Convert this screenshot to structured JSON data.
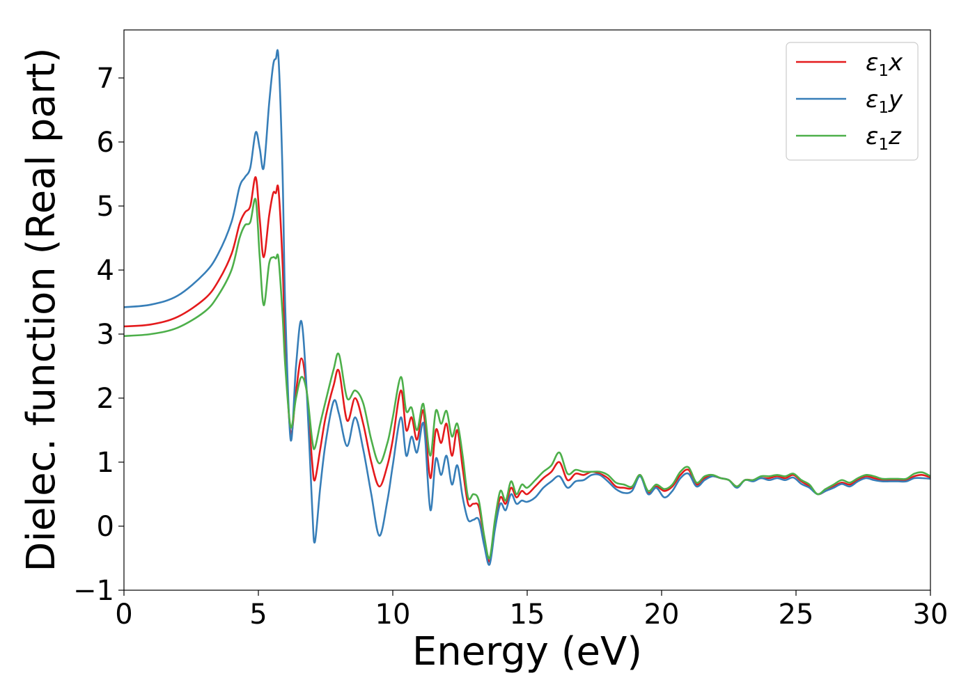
{
  "chart_data": {
    "type": "line",
    "xlabel": "Energy (eV)",
    "ylabel": "Dielec. function (Real part)",
    "xlim": [
      0,
      30
    ],
    "ylim": [
      -1,
      7.75
    ],
    "xticks": [
      0,
      5,
      10,
      15,
      20,
      25,
      30
    ],
    "xtick_labels": [
      "0",
      "5",
      "10",
      "15",
      "20",
      "25",
      "30"
    ],
    "yticks": [
      -1,
      0,
      1,
      2,
      3,
      4,
      5,
      6,
      7
    ],
    "ytick_labels": [
      "−1",
      "0",
      "1",
      "2",
      "3",
      "4",
      "5",
      "6",
      "7"
    ],
    "grid": false,
    "legend_position": "top-right",
    "series": [
      {
        "name": "ε1x",
        "legend": {
          "symbol": "ε",
          "sub": "1",
          "axis": "x"
        },
        "color": "#e41a1c",
        "x": [
          0,
          1,
          2,
          3,
          3.5,
          4,
          4.3,
          4.5,
          4.7,
          4.9,
          5.05,
          5.2,
          5.4,
          5.55,
          5.65,
          5.75,
          5.9,
          6.0,
          6.2,
          6.4,
          6.6,
          6.8,
          7.0,
          7.1,
          7.3,
          7.5,
          7.8,
          8.0,
          8.3,
          8.6,
          8.9,
          9.2,
          9.5,
          9.8,
          10.0,
          10.3,
          10.5,
          10.7,
          10.9,
          11.1,
          11.2,
          11.4,
          11.6,
          11.8,
          12.0,
          12.2,
          12.4,
          12.6,
          12.8,
          13.0,
          13.2,
          13.4,
          13.6,
          13.8,
          14.0,
          14.2,
          14.4,
          14.6,
          14.8,
          15.0,
          15.3,
          15.6,
          15.9,
          16.2,
          16.5,
          16.8,
          17.1,
          17.4,
          17.7,
          18.0,
          18.3,
          18.6,
          18.9,
          19.2,
          19.5,
          19.8,
          20.1,
          20.4,
          20.7,
          21.0,
          21.3,
          21.6,
          21.9,
          22.2,
          22.5,
          22.8,
          23.1,
          23.4,
          23.7,
          24.0,
          24.3,
          24.6,
          24.9,
          25.2,
          25.5,
          25.8,
          26.1,
          26.4,
          26.7,
          27.0,
          27.3,
          27.6,
          27.9,
          28.2,
          28.5,
          28.8,
          29.1,
          29.4,
          29.7,
          30
        ],
        "y": [
          3.12,
          3.15,
          3.27,
          3.55,
          3.82,
          4.25,
          4.72,
          4.9,
          5.0,
          5.45,
          4.8,
          4.2,
          4.85,
          5.2,
          5.2,
          5.25,
          4.1,
          2.8,
          1.45,
          2.1,
          2.62,
          2.1,
          1.0,
          0.72,
          1.2,
          1.7,
          2.2,
          2.42,
          1.65,
          2.0,
          1.6,
          1.0,
          0.62,
          0.95,
          1.35,
          2.12,
          1.5,
          1.7,
          1.35,
          1.8,
          1.6,
          0.75,
          1.5,
          1.3,
          1.6,
          1.1,
          1.5,
          0.9,
          0.35,
          0.35,
          0.3,
          -0.2,
          -0.55,
          0.05,
          0.45,
          0.35,
          0.6,
          0.45,
          0.55,
          0.5,
          0.62,
          0.75,
          0.85,
          1.0,
          0.72,
          0.82,
          0.8,
          0.85,
          0.82,
          0.75,
          0.62,
          0.6,
          0.6,
          0.8,
          0.52,
          0.62,
          0.55,
          0.62,
          0.8,
          0.88,
          0.65,
          0.75,
          0.78,
          0.75,
          0.72,
          0.62,
          0.72,
          0.72,
          0.75,
          0.75,
          0.78,
          0.75,
          0.8,
          0.7,
          0.62,
          0.5,
          0.55,
          0.62,
          0.68,
          0.65,
          0.72,
          0.78,
          0.75,
          0.72,
          0.72,
          0.72,
          0.72,
          0.78,
          0.8,
          0.76
        ]
      },
      {
        "name": "ε1y",
        "legend": {
          "symbol": "ε",
          "sub": "1",
          "axis": "y"
        },
        "color": "#377eb8",
        "x": [
          0,
          1,
          2,
          3,
          3.5,
          4,
          4.3,
          4.5,
          4.7,
          4.9,
          5.05,
          5.2,
          5.4,
          5.55,
          5.65,
          5.75,
          5.9,
          6.0,
          6.2,
          6.4,
          6.6,
          6.8,
          7.0,
          7.1,
          7.3,
          7.5,
          7.8,
          8.0,
          8.3,
          8.6,
          8.9,
          9.2,
          9.5,
          9.8,
          10.0,
          10.3,
          10.5,
          10.7,
          10.9,
          11.1,
          11.2,
          11.4,
          11.6,
          11.8,
          12.0,
          12.2,
          12.4,
          12.6,
          12.8,
          13.0,
          13.2,
          13.4,
          13.6,
          13.8,
          14.0,
          14.2,
          14.4,
          14.6,
          14.8,
          15.0,
          15.3,
          15.6,
          15.9,
          16.2,
          16.5,
          16.8,
          17.1,
          17.4,
          17.7,
          18.0,
          18.3,
          18.6,
          18.9,
          19.2,
          19.5,
          19.8,
          20.1,
          20.4,
          20.7,
          21.0,
          21.3,
          21.6,
          21.9,
          22.2,
          22.5,
          22.8,
          23.1,
          23.4,
          23.7,
          24.0,
          24.3,
          24.6,
          24.9,
          25.2,
          25.5,
          25.8,
          26.1,
          26.4,
          26.7,
          27.0,
          27.3,
          27.6,
          27.9,
          28.2,
          28.5,
          28.8,
          29.1,
          29.4,
          29.7,
          30
        ],
        "y": [
          3.42,
          3.46,
          3.6,
          3.95,
          4.25,
          4.75,
          5.3,
          5.45,
          5.6,
          6.15,
          5.9,
          5.6,
          6.6,
          7.2,
          7.3,
          7.3,
          5.5,
          3.4,
          1.35,
          2.5,
          3.2,
          2.1,
          0.3,
          -0.25,
          0.6,
          1.3,
          1.95,
          1.75,
          1.25,
          1.7,
          1.2,
          0.5,
          -0.15,
          0.4,
          0.95,
          1.7,
          1.1,
          1.4,
          1.15,
          1.6,
          1.4,
          0.25,
          1.05,
          0.8,
          1.1,
          0.65,
          0.95,
          0.45,
          0.1,
          0.1,
          0.1,
          -0.3,
          -0.6,
          -0.05,
          0.35,
          0.25,
          0.5,
          0.35,
          0.4,
          0.38,
          0.45,
          0.6,
          0.7,
          0.78,
          0.6,
          0.7,
          0.72,
          0.8,
          0.8,
          0.7,
          0.58,
          0.52,
          0.55,
          0.78,
          0.5,
          0.6,
          0.45,
          0.55,
          0.75,
          0.82,
          0.62,
          0.72,
          0.78,
          0.75,
          0.72,
          0.6,
          0.72,
          0.7,
          0.75,
          0.72,
          0.75,
          0.72,
          0.76,
          0.66,
          0.6,
          0.5,
          0.55,
          0.6,
          0.66,
          0.62,
          0.7,
          0.75,
          0.72,
          0.7,
          0.7,
          0.7,
          0.7,
          0.75,
          0.75,
          0.74
        ]
      },
      {
        "name": "ε1z",
        "legend": {
          "symbol": "ε",
          "sub": "1",
          "axis": "z"
        },
        "color": "#4daf4a",
        "x": [
          0,
          1,
          2,
          3,
          3.5,
          4,
          4.3,
          4.5,
          4.7,
          4.9,
          5.05,
          5.2,
          5.4,
          5.55,
          5.65,
          5.75,
          5.9,
          6.0,
          6.2,
          6.4,
          6.6,
          6.8,
          7.0,
          7.1,
          7.3,
          7.5,
          7.8,
          8.0,
          8.3,
          8.6,
          8.9,
          9.2,
          9.5,
          9.8,
          10.0,
          10.3,
          10.5,
          10.7,
          10.9,
          11.1,
          11.2,
          11.4,
          11.6,
          11.8,
          12.0,
          12.2,
          12.4,
          12.6,
          12.8,
          13.0,
          13.2,
          13.4,
          13.6,
          13.8,
          14.0,
          14.2,
          14.4,
          14.6,
          14.8,
          15.0,
          15.3,
          15.6,
          15.9,
          16.2,
          16.5,
          16.8,
          17.1,
          17.4,
          17.7,
          18.0,
          18.3,
          18.6,
          18.9,
          19.2,
          19.5,
          19.8,
          20.1,
          20.4,
          20.7,
          21.0,
          21.3,
          21.6,
          21.9,
          22.2,
          22.5,
          22.8,
          23.1,
          23.4,
          23.7,
          24.0,
          24.3,
          24.6,
          24.9,
          25.2,
          25.5,
          25.8,
          26.1,
          26.4,
          26.7,
          27.0,
          27.3,
          27.6,
          27.9,
          28.2,
          28.5,
          28.8,
          29.1,
          29.4,
          29.7,
          30
        ],
        "y": [
          2.97,
          3.0,
          3.1,
          3.35,
          3.6,
          4.0,
          4.5,
          4.7,
          4.75,
          5.1,
          4.2,
          3.45,
          4.1,
          4.2,
          4.18,
          4.18,
          3.3,
          2.5,
          1.55,
          2.0,
          2.33,
          2.1,
          1.35,
          1.22,
          1.6,
          1.95,
          2.45,
          2.68,
          2.0,
          2.12,
          1.92,
          1.35,
          0.98,
          1.3,
          1.7,
          2.33,
          1.8,
          1.85,
          1.5,
          1.9,
          1.75,
          1.1,
          1.8,
          1.6,
          1.8,
          1.4,
          1.6,
          1.1,
          0.45,
          0.5,
          0.4,
          -0.15,
          -0.5,
          0.1,
          0.55,
          0.4,
          0.7,
          0.5,
          0.65,
          0.6,
          0.72,
          0.85,
          0.95,
          1.15,
          0.82,
          0.88,
          0.85,
          0.85,
          0.85,
          0.8,
          0.68,
          0.65,
          0.62,
          0.8,
          0.55,
          0.65,
          0.58,
          0.65,
          0.85,
          0.92,
          0.68,
          0.78,
          0.8,
          0.75,
          0.72,
          0.62,
          0.72,
          0.72,
          0.78,
          0.78,
          0.8,
          0.78,
          0.82,
          0.72,
          0.65,
          0.5,
          0.58,
          0.65,
          0.72,
          0.68,
          0.75,
          0.8,
          0.78,
          0.74,
          0.74,
          0.74,
          0.74,
          0.82,
          0.84,
          0.78
        ]
      }
    ]
  }
}
